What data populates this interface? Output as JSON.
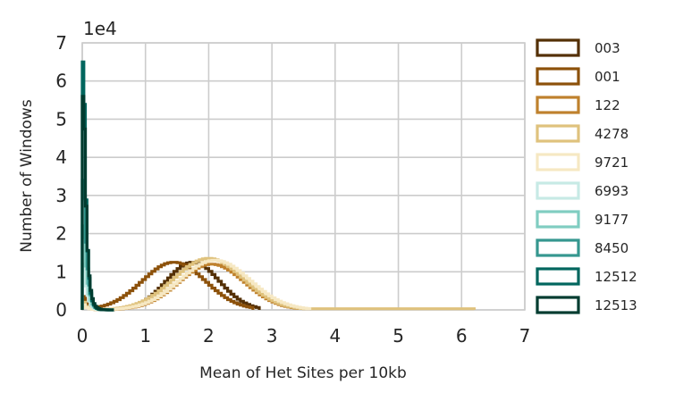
{
  "chart_data": {
    "type": "histogram-step",
    "xlabel": "Mean of Het Sites per 10kb",
    "ylabel": "Number of Windows",
    "y_multiplier_label": "1e4",
    "xlim": [
      0,
      7
    ],
    "ylim": [
      0,
      7
    ],
    "x_ticks": [
      "0",
      "1",
      "2",
      "3",
      "4",
      "5",
      "6",
      "7"
    ],
    "y_ticks": [
      "0",
      "1",
      "2",
      "3",
      "4",
      "5",
      "6",
      "7"
    ],
    "grid": true,
    "legend_position": "right",
    "series": [
      {
        "name": "003",
        "color": "#543005",
        "kind": "hump",
        "center": 1.75,
        "width": 0.42,
        "peak": 1.25,
        "xmax": 2.8,
        "spike": 0.4
      },
      {
        "name": "001",
        "color": "#8c510a",
        "kind": "hump",
        "center": 1.45,
        "width": 0.5,
        "peak": 1.25,
        "xmax": 2.7,
        "spike": 0.5
      },
      {
        "name": "122",
        "color": "#bf812d",
        "kind": "hump",
        "center": 2.05,
        "width": 0.52,
        "peak": 1.2,
        "xmax": 3.4,
        "spike": 0.3
      },
      {
        "name": "4278",
        "color": "#dfc27d",
        "kind": "hump",
        "center": 2.0,
        "width": 0.55,
        "peak": 1.35,
        "xmax": 6.2,
        "spike": 0.3
      },
      {
        "name": "9721",
        "color": "#f6e8c3",
        "kind": "hump",
        "center": 2.1,
        "width": 0.55,
        "peak": 1.3,
        "xmax": 3.6,
        "spike": 0.2
      },
      {
        "name": "6993",
        "color": "#c7eae5",
        "kind": "spike",
        "peak": 1.2,
        "decay": 0.05
      },
      {
        "name": "9177",
        "color": "#80cdc1",
        "kind": "spike",
        "peak": 2.2,
        "decay": 0.05
      },
      {
        "name": "8450",
        "color": "#35978f",
        "kind": "spike",
        "peak": 3.4,
        "decay": 0.05
      },
      {
        "name": "12512",
        "color": "#01665e",
        "kind": "spike",
        "peak": 6.5,
        "decay": 0.04
      },
      {
        "name": "12513",
        "color": "#003c30",
        "kind": "spike",
        "peak": 5.6,
        "decay": 0.045
      }
    ]
  }
}
